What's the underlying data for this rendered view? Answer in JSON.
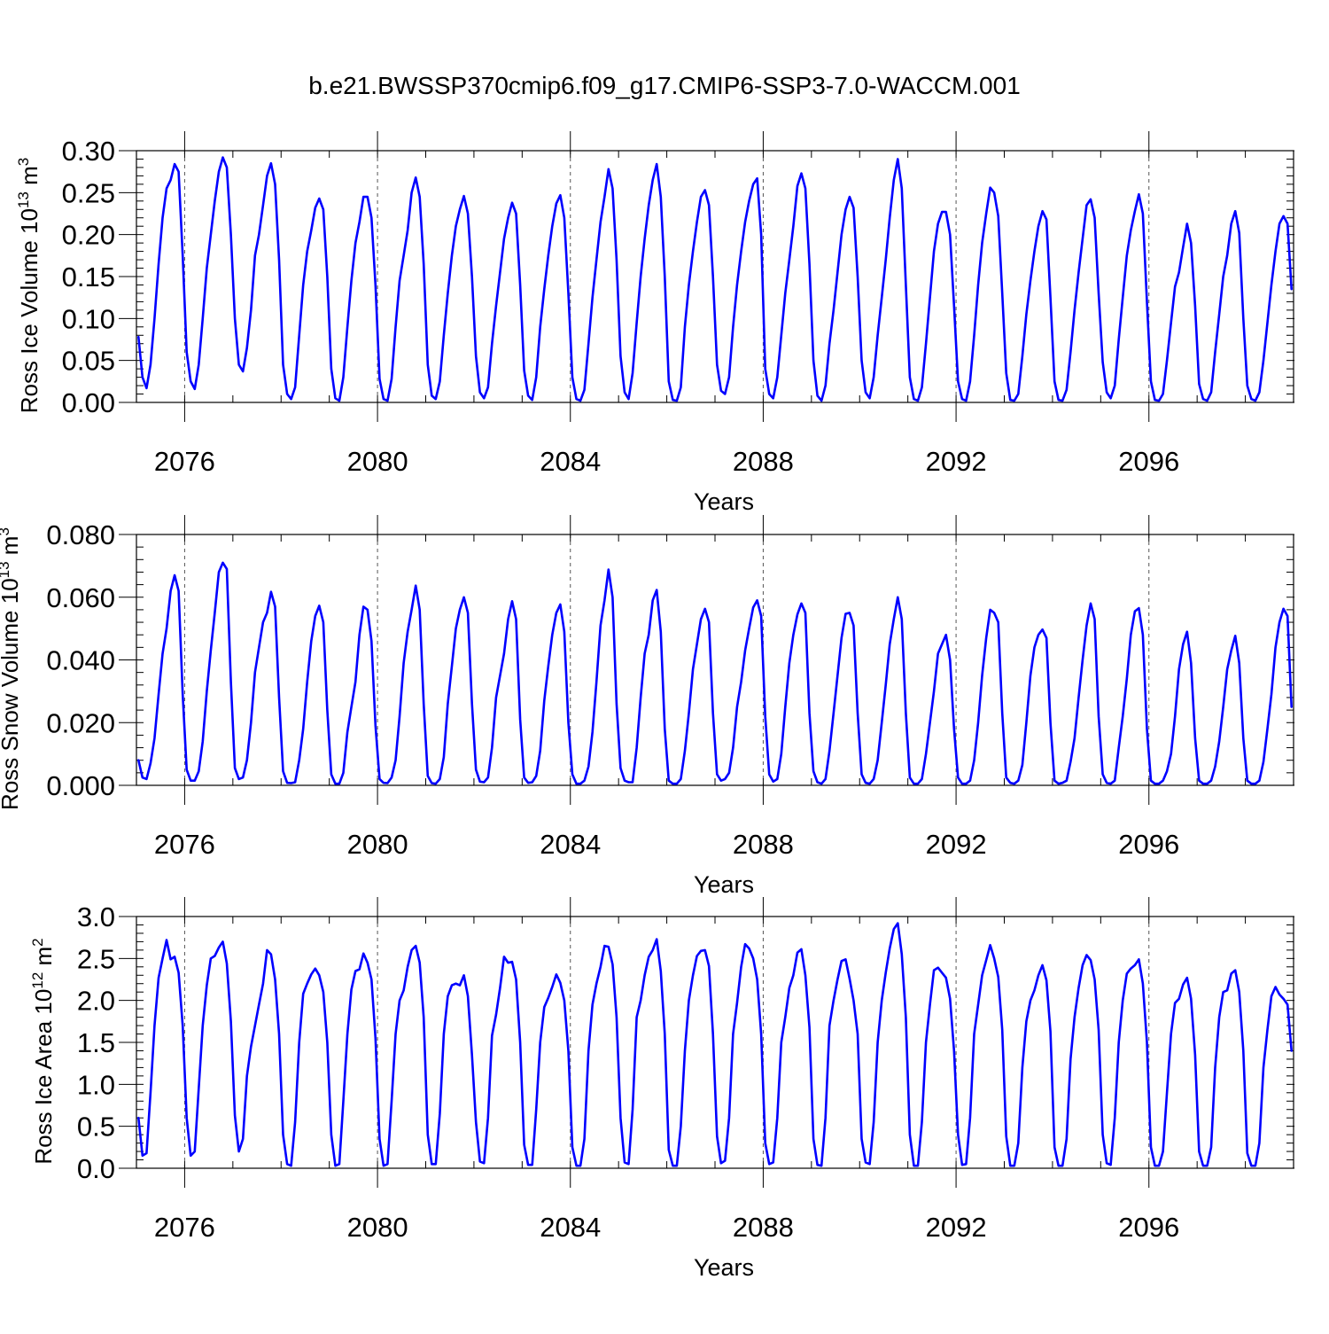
{
  "title": "b.e21.BWSSP370cmip6.f09_g17.CMIP6-SSP3-7.0-WACCM.001",
  "line_color": "#0000ff",
  "chart_data": [
    {
      "type": "line",
      "ylabel": "Ross Ice Volume 10",
      "ylabel_sup": "13",
      "ylabel_unit": " m",
      "ylabel_unit_sup": "3",
      "xlabel": "Years",
      "xlim": [
        2075.0,
        2099.0
      ],
      "ylim": [
        0.0,
        0.3
      ],
      "xticks": [
        2076,
        2080,
        2084,
        2088,
        2092,
        2096
      ],
      "xtick_labels": [
        "2076",
        "2080",
        "2084",
        "2088",
        "2092",
        "2096"
      ],
      "yticks": [
        0.0,
        0.05,
        0.1,
        0.15,
        0.2,
        0.25,
        0.3
      ],
      "ytick_labels": [
        "0.00",
        "0.05",
        "0.10",
        "0.15",
        "0.20",
        "0.25",
        "0.30"
      ],
      "minor_y_step": 0.01,
      "dashed_x": [
        2076,
        2080,
        2084,
        2088,
        2092,
        2096
      ],
      "series": [
        {
          "x_start": 2075.042,
          "x_step": 0.08333,
          "values": [
            0.078,
            0.03,
            0.017,
            0.045,
            0.1,
            0.165,
            0.22,
            0.255,
            0.265,
            0.284,
            0.275,
            0.175,
            0.06,
            0.025,
            0.016,
            0.045,
            0.1,
            0.16,
            0.2,
            0.24,
            0.275,
            0.292,
            0.28,
            0.2,
            0.1,
            0.045,
            0.037,
            0.065,
            0.11,
            0.175,
            0.2,
            0.235,
            0.27,
            0.285,
            0.26,
            0.17,
            0.045,
            0.01,
            0.004,
            0.018,
            0.08,
            0.14,
            0.18,
            0.205,
            0.232,
            0.243,
            0.23,
            0.15,
            0.04,
            0.005,
            0.002,
            0.03,
            0.09,
            0.145,
            0.19,
            0.215,
            0.245,
            0.245,
            0.22,
            0.14,
            0.028,
            0.004,
            0.002,
            0.028,
            0.09,
            0.145,
            0.175,
            0.205,
            0.25,
            0.268,
            0.245,
            0.165,
            0.045,
            0.008,
            0.004,
            0.025,
            0.08,
            0.13,
            0.175,
            0.21,
            0.23,
            0.246,
            0.225,
            0.15,
            0.055,
            0.012,
            0.005,
            0.018,
            0.07,
            0.115,
            0.155,
            0.195,
            0.22,
            0.238,
            0.225,
            0.14,
            0.038,
            0.008,
            0.003,
            0.03,
            0.09,
            0.135,
            0.175,
            0.21,
            0.237,
            0.247,
            0.22,
            0.13,
            0.03,
            0.004,
            0.002,
            0.015,
            0.07,
            0.125,
            0.17,
            0.215,
            0.245,
            0.278,
            0.255,
            0.17,
            0.055,
            0.012,
            0.004,
            0.035,
            0.095,
            0.15,
            0.195,
            0.235,
            0.265,
            0.284,
            0.245,
            0.15,
            0.025,
            0.003,
            0.002,
            0.018,
            0.09,
            0.14,
            0.18,
            0.215,
            0.245,
            0.253,
            0.235,
            0.15,
            0.045,
            0.014,
            0.01,
            0.03,
            0.09,
            0.14,
            0.18,
            0.215,
            0.24,
            0.26,
            0.267,
            0.2,
            0.04,
            0.01,
            0.005,
            0.03,
            0.08,
            0.13,
            0.17,
            0.21,
            0.258,
            0.273,
            0.255,
            0.165,
            0.05,
            0.008,
            0.002,
            0.02,
            0.07,
            0.11,
            0.155,
            0.2,
            0.23,
            0.245,
            0.232,
            0.15,
            0.05,
            0.012,
            0.005,
            0.03,
            0.08,
            0.125,
            0.17,
            0.22,
            0.265,
            0.29,
            0.255,
            0.14,
            0.03,
            0.004,
            0.002,
            0.018,
            0.07,
            0.125,
            0.18,
            0.213,
            0.227,
            0.227,
            0.2,
            0.115,
            0.025,
            0.004,
            0.002,
            0.025,
            0.08,
            0.14,
            0.19,
            0.225,
            0.256,
            0.25,
            0.222,
            0.13,
            0.035,
            0.003,
            0.002,
            0.01,
            0.055,
            0.105,
            0.145,
            0.18,
            0.21,
            0.228,
            0.218,
            0.125,
            0.025,
            0.003,
            0.002,
            0.015,
            0.06,
            0.11,
            0.155,
            0.195,
            0.235,
            0.242,
            0.22,
            0.13,
            0.048,
            0.012,
            0.005,
            0.02,
            0.075,
            0.125,
            0.175,
            0.205,
            0.228,
            0.248,
            0.225,
            0.12,
            0.025,
            0.003,
            0.002,
            0.01,
            0.05,
            0.095,
            0.138,
            0.155,
            0.185,
            0.213,
            0.19,
            0.115,
            0.022,
            0.004,
            0.002,
            0.012,
            0.06,
            0.105,
            0.15,
            0.175,
            0.213,
            0.228,
            0.202,
            0.1,
            0.02,
            0.004,
            0.002,
            0.012,
            0.05,
            0.095,
            0.14,
            0.18,
            0.213,
            0.222,
            0.213,
            0.135
          ]
        }
      ]
    },
    {
      "type": "line",
      "ylabel": "Ross Snow Volume 10",
      "ylabel_sup": "13",
      "ylabel_unit": " m",
      "ylabel_unit_sup": "3",
      "xlabel": "Years",
      "xlim": [
        2075.0,
        2099.0
      ],
      "ylim": [
        0.0,
        0.08
      ],
      "xticks": [
        2076,
        2080,
        2084,
        2088,
        2092,
        2096
      ],
      "xtick_labels": [
        "2076",
        "2080",
        "2084",
        "2088",
        "2092",
        "2096"
      ],
      "yticks": [
        0.0,
        0.02,
        0.04,
        0.06,
        0.08
      ],
      "ytick_labels": [
        "0.000",
        "0.020",
        "0.040",
        "0.060",
        "0.080"
      ],
      "minor_y_step": 0.004,
      "dashed_x": [
        2076,
        2080,
        2084,
        2088,
        2092,
        2096
      ],
      "series": [
        {
          "x_start": 2075.042,
          "x_step": 0.08333,
          "values": [
            0.008,
            0.0025,
            0.002,
            0.007,
            0.015,
            0.029,
            0.042,
            0.05,
            0.062,
            0.067,
            0.062,
            0.029,
            0.005,
            0.0015,
            0.0015,
            0.0045,
            0.014,
            0.03,
            0.043,
            0.055,
            0.068,
            0.071,
            0.069,
            0.033,
            0.0055,
            0.002,
            0.0025,
            0.008,
            0.02,
            0.036,
            0.044,
            0.052,
            0.055,
            0.0617,
            0.057,
            0.028,
            0.0045,
            0.0008,
            0.0007,
            0.001,
            0.008,
            0.018,
            0.033,
            0.046,
            0.054,
            0.0573,
            0.052,
            0.024,
            0.0035,
            0.0005,
            0.0005,
            0.004,
            0.017,
            0.025,
            0.033,
            0.048,
            0.057,
            0.056,
            0.046,
            0.019,
            0.002,
            0.0008,
            0.0007,
            0.0025,
            0.008,
            0.022,
            0.039,
            0.049,
            0.056,
            0.0637,
            0.056,
            0.026,
            0.003,
            0.0007,
            0.0005,
            0.002,
            0.009,
            0.026,
            0.038,
            0.05,
            0.056,
            0.06,
            0.055,
            0.026,
            0.005,
            0.0012,
            0.001,
            0.0025,
            0.012,
            0.028,
            0.035,
            0.042,
            0.053,
            0.0587,
            0.053,
            0.021,
            0.0025,
            0.0008,
            0.001,
            0.003,
            0.011,
            0.027,
            0.038,
            0.048,
            0.055,
            0.0577,
            0.049,
            0.02,
            0.0035,
            0.0005,
            0.0005,
            0.0015,
            0.006,
            0.017,
            0.033,
            0.051,
            0.059,
            0.0688,
            0.06,
            0.026,
            0.0055,
            0.0015,
            0.001,
            0.001,
            0.012,
            0.028,
            0.042,
            0.048,
            0.059,
            0.0623,
            0.049,
            0.018,
            0.0015,
            0.0005,
            0.0005,
            0.002,
            0.011,
            0.023,
            0.037,
            0.045,
            0.053,
            0.0563,
            0.052,
            0.023,
            0.0035,
            0.0015,
            0.002,
            0.004,
            0.012,
            0.025,
            0.033,
            0.043,
            0.05,
            0.0567,
            0.059,
            0.054,
            0.022,
            0.0035,
            0.0012,
            0.002,
            0.01,
            0.025,
            0.039,
            0.048,
            0.0545,
            0.058,
            0.055,
            0.023,
            0.0045,
            0.001,
            0.0005,
            0.002,
            0.011,
            0.023,
            0.035,
            0.047,
            0.0547,
            0.055,
            0.051,
            0.023,
            0.0035,
            0.0008,
            0.0005,
            0.002,
            0.008,
            0.02,
            0.032,
            0.045,
            0.053,
            0.06,
            0.053,
            0.023,
            0.0025,
            0.0005,
            0.0005,
            0.002,
            0.01,
            0.02,
            0.03,
            0.042,
            0.045,
            0.048,
            0.04,
            0.018,
            0.0025,
            0.0005,
            0.0005,
            0.0015,
            0.008,
            0.02,
            0.035,
            0.047,
            0.056,
            0.055,
            0.052,
            0.023,
            0.0025,
            0.0008,
            0.0005,
            0.0015,
            0.0065,
            0.02,
            0.035,
            0.044,
            0.048,
            0.0497,
            0.047,
            0.02,
            0.0015,
            0.0005,
            0.0008,
            0.0015,
            0.0075,
            0.015,
            0.028,
            0.04,
            0.051,
            0.058,
            0.053,
            0.022,
            0.0035,
            0.0008,
            0.0005,
            0.0015,
            0.012,
            0.022,
            0.034,
            0.048,
            0.0555,
            0.0565,
            0.048,
            0.018,
            0.0015,
            0.0005,
            0.0005,
            0.0015,
            0.0045,
            0.01,
            0.022,
            0.037,
            0.045,
            0.049,
            0.039,
            0.015,
            0.0015,
            0.0005,
            0.0005,
            0.0015,
            0.006,
            0.014,
            0.025,
            0.037,
            0.043,
            0.0477,
            0.039,
            0.015,
            0.0015,
            0.0005,
            0.0005,
            0.0015,
            0.0075,
            0.018,
            0.029,
            0.044,
            0.052,
            0.0563,
            0.054,
            0.025
          ]
        }
      ]
    },
    {
      "type": "line",
      "ylabel": "Ross Ice Area 10",
      "ylabel_sup": "12",
      "ylabel_unit": " m",
      "ylabel_unit_sup": "2",
      "xlabel": "Years",
      "xlim": [
        2075.0,
        2099.0
      ],
      "ylim": [
        0.0,
        3.0
      ],
      "xticks": [
        2076,
        2080,
        2084,
        2088,
        2092,
        2096
      ],
      "xtick_labels": [
        "2076",
        "2080",
        "2084",
        "2088",
        "2092",
        "2096"
      ],
      "yticks": [
        0.0,
        0.5,
        1.0,
        1.5,
        2.0,
        2.5,
        3.0
      ],
      "ytick_labels": [
        "0.0",
        "0.5",
        "1.0",
        "1.5",
        "2.0",
        "2.5",
        "3.0"
      ],
      "minor_y_step": 0.1,
      "dashed_x": [
        2076,
        2080,
        2084,
        2088,
        2092,
        2096
      ],
      "series": [
        {
          "x_start": 2075.042,
          "x_step": 0.08333,
          "values": [
            0.6,
            0.15,
            0.18,
            0.9,
            1.7,
            2.27,
            2.5,
            2.72,
            2.49,
            2.52,
            2.33,
            1.7,
            0.6,
            0.15,
            0.2,
            0.95,
            1.7,
            2.18,
            2.5,
            2.53,
            2.63,
            2.7,
            2.44,
            1.75,
            0.63,
            0.2,
            0.35,
            1.1,
            1.45,
            1.7,
            1.95,
            2.2,
            2.6,
            2.55,
            2.25,
            1.6,
            0.4,
            0.05,
            0.03,
            0.55,
            1.5,
            2.08,
            2.2,
            2.31,
            2.38,
            2.3,
            2.1,
            1.5,
            0.4,
            0.03,
            0.05,
            0.8,
            1.6,
            2.13,
            2.35,
            2.37,
            2.56,
            2.45,
            2.25,
            1.55,
            0.35,
            0.03,
            0.05,
            0.8,
            1.6,
            2.0,
            2.12,
            2.4,
            2.6,
            2.65,
            2.45,
            1.8,
            0.4,
            0.05,
            0.05,
            0.65,
            1.6,
            2.05,
            2.18,
            2.2,
            2.18,
            2.3,
            2.05,
            1.35,
            0.55,
            0.08,
            0.06,
            0.6,
            1.58,
            1.83,
            2.15,
            2.52,
            2.45,
            2.46,
            2.25,
            1.5,
            0.28,
            0.04,
            0.04,
            0.7,
            1.5,
            1.92,
            2.03,
            2.16,
            2.31,
            2.21,
            2.0,
            1.4,
            0.25,
            0.03,
            0.03,
            0.35,
            1.4,
            1.95,
            2.2,
            2.4,
            2.65,
            2.64,
            2.43,
            1.8,
            0.6,
            0.07,
            0.05,
            0.7,
            1.8,
            2.0,
            2.3,
            2.52,
            2.6,
            2.73,
            2.35,
            1.6,
            0.22,
            0.03,
            0.03,
            0.5,
            1.4,
            2.0,
            2.3,
            2.53,
            2.59,
            2.6,
            2.41,
            1.6,
            0.38,
            0.06,
            0.09,
            0.6,
            1.6,
            1.97,
            2.4,
            2.67,
            2.62,
            2.5,
            2.25,
            1.6,
            0.3,
            0.05,
            0.07,
            0.6,
            1.5,
            1.8,
            2.15,
            2.3,
            2.57,
            2.61,
            2.3,
            1.68,
            0.35,
            0.04,
            0.03,
            0.6,
            1.7,
            2.0,
            2.25,
            2.47,
            2.49,
            2.26,
            2.0,
            1.6,
            0.35,
            0.07,
            0.05,
            0.55,
            1.5,
            2.0,
            2.33,
            2.62,
            2.85,
            2.92,
            2.55,
            1.8,
            0.4,
            0.03,
            0.03,
            0.55,
            1.5,
            1.95,
            2.36,
            2.39,
            2.33,
            2.27,
            2.02,
            1.4,
            0.4,
            0.04,
            0.05,
            0.6,
            1.6,
            1.95,
            2.3,
            2.48,
            2.66,
            2.5,
            2.28,
            1.65,
            0.38,
            0.03,
            0.03,
            0.3,
            1.2,
            1.75,
            2.0,
            2.12,
            2.3,
            2.42,
            2.24,
            1.63,
            0.25,
            0.03,
            0.03,
            0.35,
            1.3,
            1.8,
            2.15,
            2.42,
            2.54,
            2.48,
            2.25,
            1.65,
            0.4,
            0.06,
            0.04,
            0.6,
            1.5,
            2.0,
            2.32,
            2.38,
            2.42,
            2.49,
            2.2,
            1.5,
            0.25,
            0.03,
            0.03,
            0.2,
            0.9,
            1.6,
            1.97,
            2.02,
            2.19,
            2.27,
            2.02,
            1.35,
            0.2,
            0.03,
            0.03,
            0.25,
            1.2,
            1.8,
            2.1,
            2.12,
            2.32,
            2.36,
            2.1,
            1.4,
            0.18,
            0.03,
            0.03,
            0.3,
            1.2,
            1.65,
            2.05,
            2.16,
            2.07,
            2.02,
            1.95,
            1.4
          ]
        }
      ]
    }
  ]
}
